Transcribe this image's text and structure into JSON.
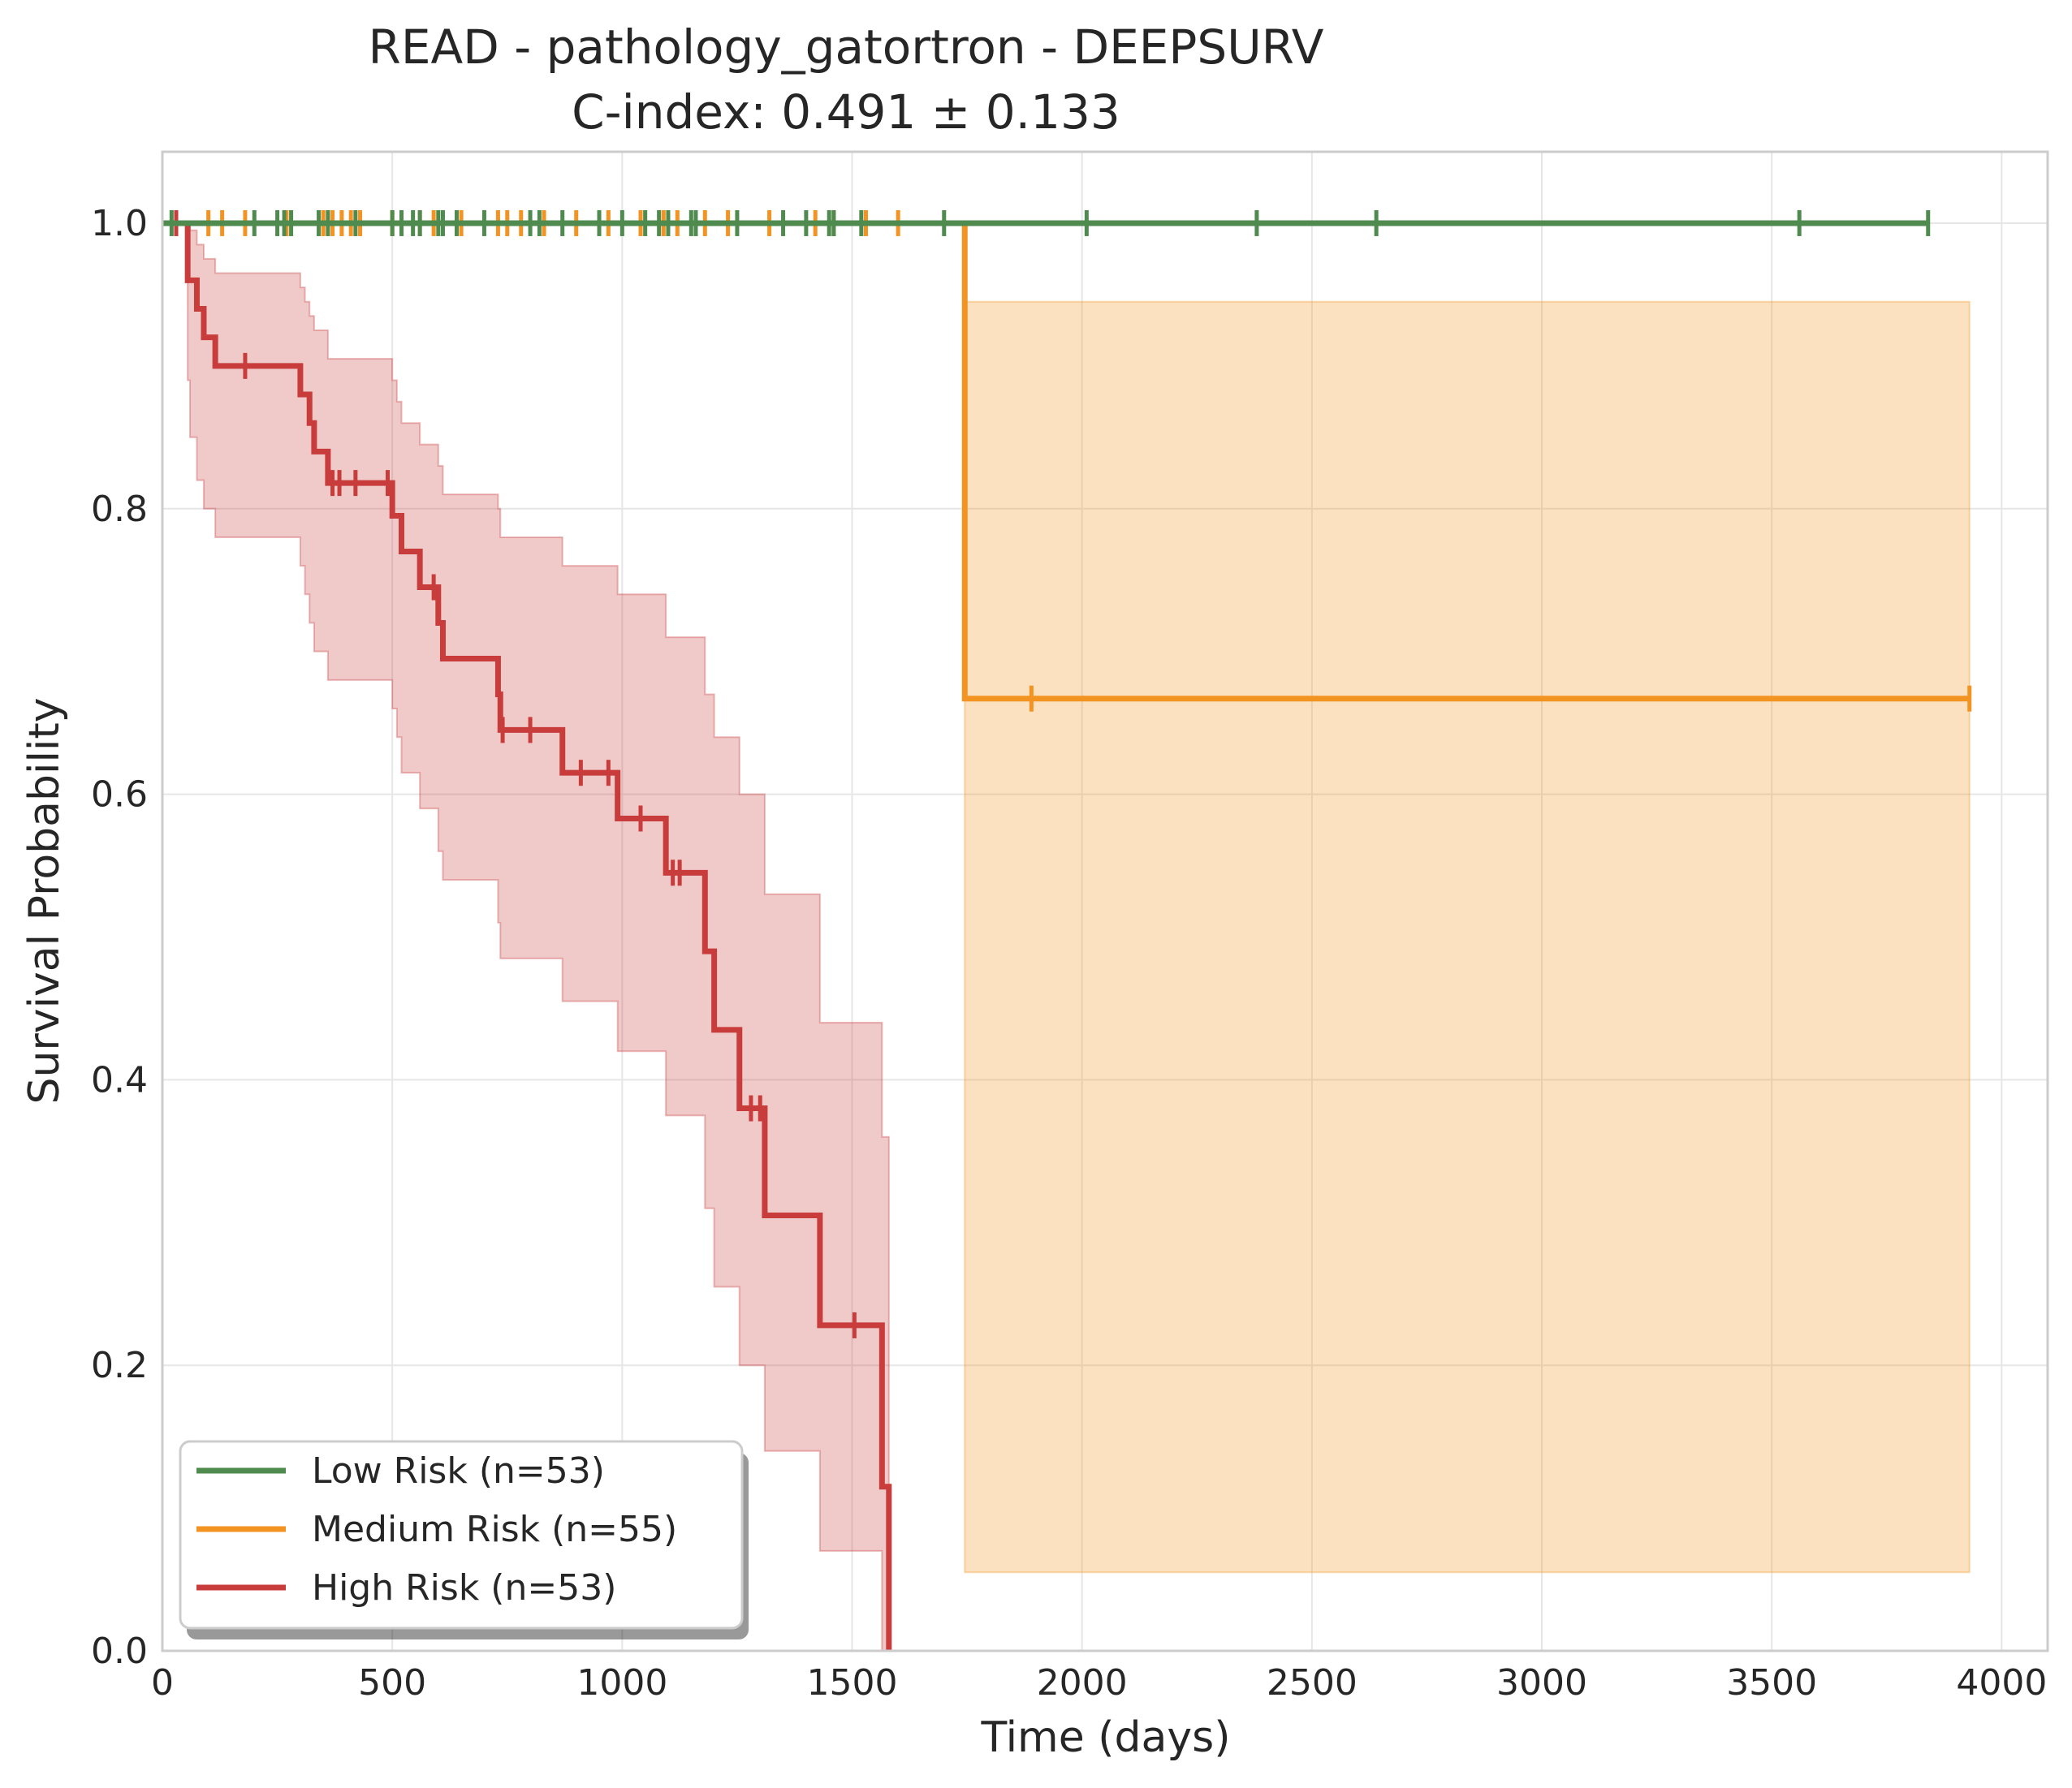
{
  "chart_data": {
    "type": "line",
    "subtype": "kaplan-meier",
    "title": "READ - pathology_gatortron - DEEPSURV",
    "subtitle": "C-index: 0.491 ± 0.133",
    "xlabel": "Time (days)",
    "ylabel": "Survival Probability",
    "xlim": [
      0,
      4100
    ],
    "ylim": [
      0,
      1.05
    ],
    "xticks": [
      0,
      500,
      1000,
      1500,
      2000,
      2500,
      3000,
      3500,
      4000
    ],
    "yticks": [
      0.0,
      0.2,
      0.4,
      0.6,
      0.8,
      1.0
    ],
    "xtick_labels": [
      "0",
      "500",
      "1000",
      "1500",
      "2000",
      "2500",
      "3000",
      "3500",
      "4000"
    ],
    "ytick_labels": [
      "0.0",
      "0.2",
      "0.4",
      "0.6",
      "0.8",
      "1.0"
    ],
    "grid": true,
    "legend_position": "bottom-left",
    "series": [
      {
        "name": "Low Risk (n=53)",
        "color": "#4f8a4f",
        "steps": [
          [
            0,
            1.0
          ],
          [
            3840,
            1.0
          ]
        ],
        "censor_times": [
          20,
          200,
          250,
          265,
          280,
          340,
          360,
          420,
          500,
          520,
          545,
          560,
          600,
          610,
          640,
          700,
          800,
          820,
          870,
          950,
          1000,
          1050,
          1080,
          1100,
          1150,
          1160,
          1250,
          1350,
          1400,
          1450,
          1460,
          1520,
          1700,
          2010,
          2380,
          2640,
          3560,
          3840
        ],
        "ci": []
      },
      {
        "name": "Medium Risk (n=55)",
        "color": "#f39422",
        "steps": [
          [
            0,
            1.0
          ],
          [
            1745,
            1.0
          ],
          [
            1745,
            0.667
          ],
          [
            3930,
            0.667
          ]
        ],
        "censor_times": [
          100,
          130,
          180,
          270,
          350,
          370,
          390,
          410,
          430,
          500,
          560,
          590,
          650,
          730,
          750,
          780,
          830,
          900,
          970,
          1040,
          1090,
          1120,
          1180,
          1230,
          1320,
          1420,
          1460,
          1530,
          1600,
          1890,
          3930
        ],
        "censor_levels": [
          1.0,
          1.0,
          1.0,
          1.0,
          1.0,
          1.0,
          1.0,
          1.0,
          1.0,
          1.0,
          1.0,
          1.0,
          1.0,
          1.0,
          1.0,
          1.0,
          1.0,
          1.0,
          1.0,
          1.0,
          1.0,
          1.0,
          1.0,
          1.0,
          1.0,
          1.0,
          1.0,
          1.0,
          1.0,
          0.667,
          0.667
        ],
        "ci": [
          [
            1745,
            0.055,
            0.945
          ],
          [
            3930,
            0.055,
            0.945
          ]
        ]
      },
      {
        "name": "High Risk (n=53)",
        "color": "#c83c3c",
        "steps": [
          [
            0,
            1.0
          ],
          [
            55,
            1.0
          ],
          [
            55,
            0.96
          ],
          [
            75,
            0.96
          ],
          [
            75,
            0.94
          ],
          [
            90,
            0.94
          ],
          [
            90,
            0.92
          ],
          [
            115,
            0.92
          ],
          [
            115,
            0.9
          ],
          [
            300,
            0.9
          ],
          [
            300,
            0.88
          ],
          [
            320,
            0.88
          ],
          [
            320,
            0.86
          ],
          [
            330,
            0.86
          ],
          [
            330,
            0.84
          ],
          [
            360,
            0.84
          ],
          [
            360,
            0.818
          ],
          [
            500,
            0.818
          ],
          [
            500,
            0.795
          ],
          [
            520,
            0.795
          ],
          [
            520,
            0.77
          ],
          [
            560,
            0.77
          ],
          [
            560,
            0.745
          ],
          [
            600,
            0.745
          ],
          [
            600,
            0.72
          ],
          [
            610,
            0.72
          ],
          [
            610,
            0.695
          ],
          [
            730,
            0.695
          ],
          [
            730,
            0.67
          ],
          [
            735,
            0.67
          ],
          [
            735,
            0.645
          ],
          [
            870,
            0.645
          ],
          [
            870,
            0.615
          ],
          [
            990,
            0.615
          ],
          [
            990,
            0.583
          ],
          [
            1095,
            0.583
          ],
          [
            1095,
            0.545
          ],
          [
            1180,
            0.545
          ],
          [
            1180,
            0.49
          ],
          [
            1200,
            0.49
          ],
          [
            1200,
            0.435
          ],
          [
            1255,
            0.435
          ],
          [
            1255,
            0.38
          ],
          [
            1310,
            0.38
          ],
          [
            1310,
            0.305
          ],
          [
            1430,
            0.305
          ],
          [
            1430,
            0.228
          ],
          [
            1565,
            0.228
          ],
          [
            1565,
            0.115
          ],
          [
            1580,
            0.115
          ],
          [
            1580,
            0.0
          ]
        ],
        "censor_times": [
          30,
          180,
          370,
          385,
          420,
          490,
          590,
          740,
          800,
          910,
          970,
          1040,
          1110,
          1125,
          1280,
          1300,
          1505
        ],
        "censor_levels": [
          1.0,
          0.9,
          0.818,
          0.818,
          0.818,
          0.818,
          0.745,
          0.645,
          0.645,
          0.615,
          0.615,
          0.583,
          0.545,
          0.545,
          0.38,
          0.38,
          0.228
        ],
        "ci": [
          [
            0,
            1.0,
            1.0
          ],
          [
            55,
            0.89,
            1.0
          ],
          [
            60,
            0.85,
            0.995
          ],
          [
            75,
            0.82,
            0.985
          ],
          [
            90,
            0.8,
            0.975
          ],
          [
            115,
            0.78,
            0.965
          ],
          [
            300,
            0.76,
            0.955
          ],
          [
            310,
            0.74,
            0.945
          ],
          [
            320,
            0.72,
            0.935
          ],
          [
            330,
            0.7,
            0.925
          ],
          [
            360,
            0.68,
            0.905
          ],
          [
            500,
            0.66,
            0.89
          ],
          [
            510,
            0.64,
            0.875
          ],
          [
            520,
            0.615,
            0.86
          ],
          [
            560,
            0.59,
            0.845
          ],
          [
            600,
            0.56,
            0.83
          ],
          [
            610,
            0.54,
            0.81
          ],
          [
            730,
            0.51,
            0.8
          ],
          [
            735,
            0.485,
            0.78
          ],
          [
            870,
            0.455,
            0.76
          ],
          [
            990,
            0.42,
            0.74
          ],
          [
            1095,
            0.375,
            0.71
          ],
          [
            1180,
            0.31,
            0.67
          ],
          [
            1200,
            0.255,
            0.64
          ],
          [
            1255,
            0.2,
            0.6
          ],
          [
            1310,
            0.14,
            0.53
          ],
          [
            1430,
            0.07,
            0.44
          ],
          [
            1565,
            0.0,
            0.36
          ],
          [
            1580,
            0.0,
            0.0
          ]
        ]
      }
    ]
  }
}
